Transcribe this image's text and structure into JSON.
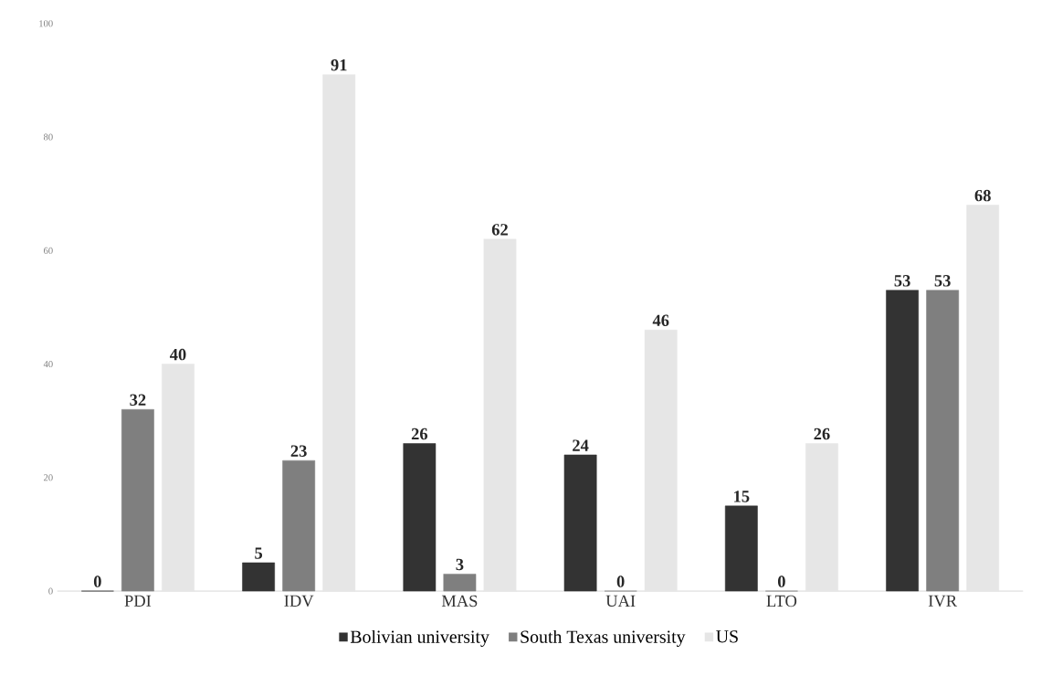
{
  "chart_data": {
    "type": "bar",
    "categories": [
      "PDI",
      "IDV",
      "MAS",
      "UAI",
      "LTO",
      "IVR"
    ],
    "series": [
      {
        "name": "Bolivian university",
        "color": "#333333",
        "values": [
          0,
          5,
          26,
          24,
          15,
          53
        ]
      },
      {
        "name": "South Texas university",
        "color": "#7f7f7f",
        "values": [
          32,
          23,
          3,
          0,
          0,
          53
        ]
      },
      {
        "name": "US",
        "color": "#e6e6e6",
        "values": [
          40,
          91,
          62,
          46,
          26,
          68
        ]
      }
    ],
    "ylim": [
      0,
      100
    ],
    "yticks": [
      0,
      20,
      40,
      60,
      80,
      100
    ],
    "data_labels": true,
    "legend": "bottom",
    "grid": false
  }
}
